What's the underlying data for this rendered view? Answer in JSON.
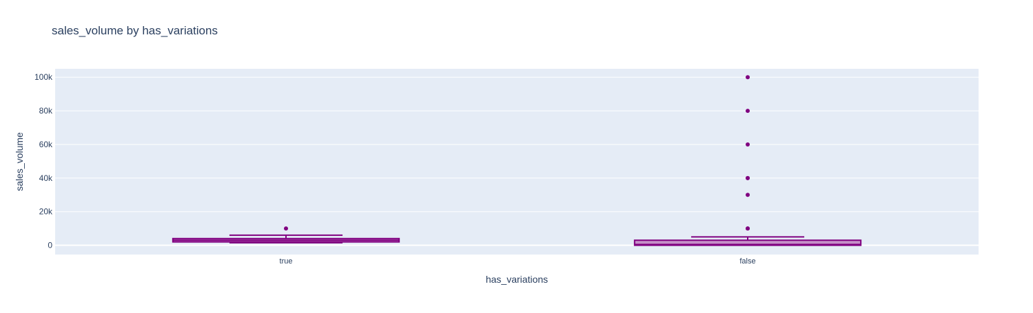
{
  "chart_data": {
    "type": "box",
    "title": "sales_volume by has_variations",
    "xlabel": "has_variations",
    "ylabel": "sales_volume",
    "categories": [
      "true",
      "false"
    ],
    "ylim": [
      -5500,
      105000
    ],
    "yticks": [
      0,
      20000,
      40000,
      60000,
      80000,
      100000
    ],
    "ytick_labels": [
      "0",
      "20k",
      "40k",
      "60k",
      "80k",
      "100k"
    ],
    "grid": true,
    "legend": "none",
    "colors": {
      "box_line": "#800080",
      "box_fill": "#c080c0",
      "plot_bg": "#e5ecf6",
      "grid": "#ffffff",
      "text": "#2a3f5f"
    },
    "boxes": [
      {
        "category": "true",
        "lowerfence": 1500,
        "q1": 2000,
        "median": 3000,
        "q3": 4000,
        "upperfence": 6000,
        "outliers": [
          10000
        ]
      },
      {
        "category": "false",
        "lowerfence": 0,
        "q1": 0,
        "median": 500,
        "q3": 3000,
        "upperfence": 5000,
        "outliers": [
          10000,
          10000,
          30000,
          40000,
          40000,
          60000,
          80000,
          100000
        ]
      }
    ]
  }
}
